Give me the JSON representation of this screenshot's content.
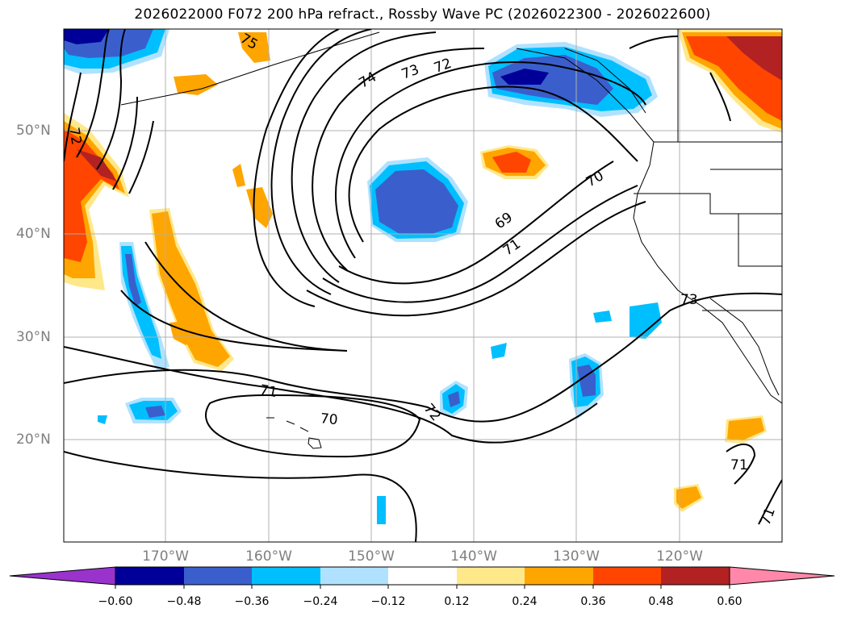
{
  "title": "2026022000 F072 200 hPa refract., Rossby Wave PC (2026022300 - 2026022600)",
  "lat_labels": [
    "50°N",
    "40°N",
    "30°N",
    "20°N"
  ],
  "lon_labels": [
    "170°W",
    "160°W",
    "150°W",
    "140°W",
    "130°W",
    "120°W"
  ],
  "contour_labels": [
    "72",
    "75",
    "74",
    "73",
    "72",
    "70",
    "69",
    "71",
    "73",
    "71",
    "70",
    "72",
    "71",
    "71"
  ],
  "colorbar": {
    "ticks": [
      "−0.60",
      "−0.48",
      "−0.36",
      "−0.24",
      "−0.12",
      "0.12",
      "0.24",
      "0.36",
      "0.48",
      "0.60"
    ],
    "colors": [
      "#9933cc",
      "#000099",
      "#3a5fcd",
      "#00bfff",
      "#b0e2ff",
      "#ffffff",
      "#ffe88a",
      "#ffa500",
      "#ff4500",
      "#b22222",
      "#ff88aa"
    ]
  }
}
